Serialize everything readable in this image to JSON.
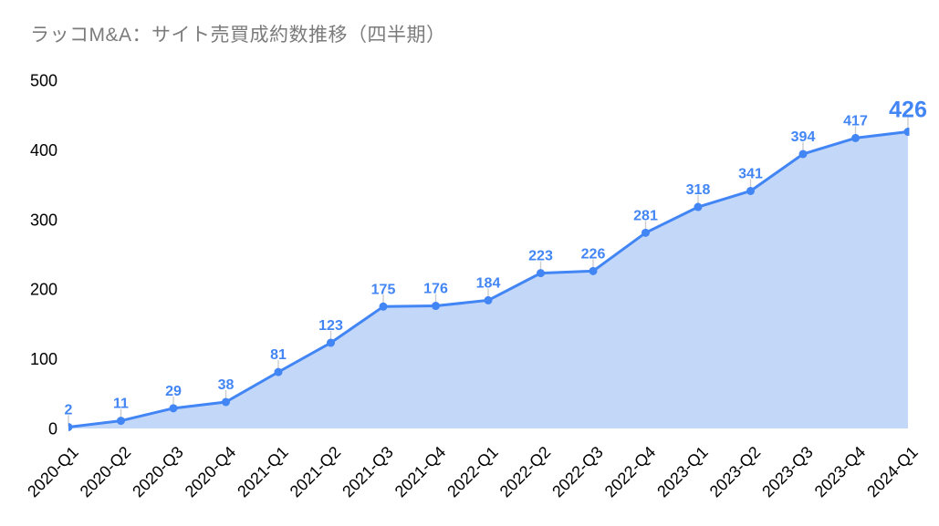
{
  "title": "ラッコM&A：サイト売買成約数推移（四半期）",
  "chart_data": {
    "type": "area",
    "title": "ラッコM&A：サイト売買成約数推移（四半期）",
    "categories": [
      "2020-Q1",
      "2020-Q2",
      "2020-Q3",
      "2020-Q4",
      "2021-Q1",
      "2021-Q2",
      "2021-Q3",
      "2021-Q4",
      "2022-Q1",
      "2022-Q2",
      "2022-Q3",
      "2022-Q4",
      "2023-Q1",
      "2023-Q2",
      "2023-Q3",
      "2023-Q4",
      "2024-Q1"
    ],
    "values": [
      2,
      11,
      29,
      38,
      81,
      123,
      175,
      176,
      184,
      223,
      226,
      281,
      318,
      341,
      394,
      417,
      426
    ],
    "xlabel": "",
    "ylabel": "",
    "ylim": [
      0,
      500
    ],
    "yticks": [
      0,
      100,
      200,
      300,
      400,
      500
    ],
    "grid": false,
    "legend": "none",
    "data_labels": true,
    "highlight_last_value": 426,
    "x_label_rotation_deg": -45
  },
  "colors": {
    "line": "#4285f4",
    "fill": "#c3d7f8",
    "point": "#4285f4",
    "data_label": "#4285f4",
    "highlight_label": "#4285f4",
    "callout": "#cccccc",
    "axis_label": "#000000",
    "title": "#7b7b7b",
    "background": "#ffffff"
  }
}
